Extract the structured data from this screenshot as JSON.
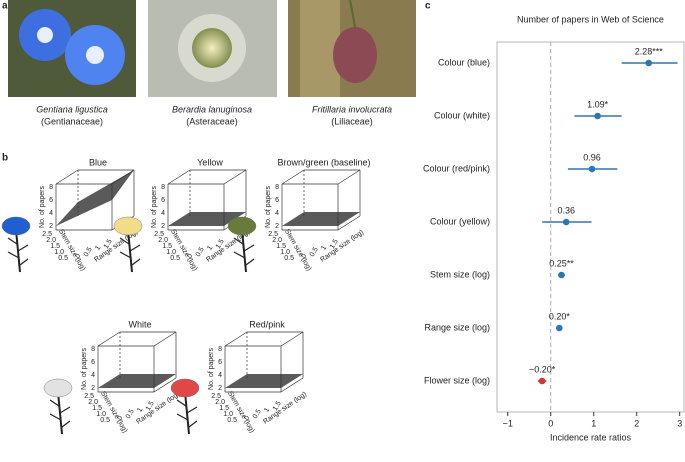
{
  "panel_a": {
    "label": "a",
    "photos": [
      {
        "species": "Gentiana ligustica",
        "family": "(Gentianaceae)"
      },
      {
        "species": "Berardia lanuginosa",
        "family": "(Asteraceae)"
      },
      {
        "species": "Fritillaria involucrata",
        "family": "(Liliaceae)"
      }
    ]
  },
  "panel_b": {
    "label": "b",
    "plots": [
      {
        "title": "Blue"
      },
      {
        "title": "Yellow"
      },
      {
        "title": "Brown/green (baseline)"
      },
      {
        "title": "White"
      },
      {
        "title": "Red/pink"
      }
    ],
    "z_label": "No. of papers",
    "x_label": "Range size (log)",
    "y_label": "Stem size (log)",
    "z_ticks": [
      "2",
      "4",
      "6",
      "8"
    ],
    "x_ticks": [
      "0",
      "0.5",
      "1",
      "1.5"
    ],
    "y_ticks": [
      "2.5",
      "2.0",
      "1.5",
      "1.0",
      "0.5"
    ]
  },
  "chart_data": {
    "type": "forest",
    "label": "c",
    "title": "Number of papers in Web of Science",
    "x_label": "Incidence rate ratios",
    "categories": [
      "Colour (blue)",
      "Colour (white)",
      "Colour (red/pink)",
      "Colour (yellow)",
      "Stem size (log)",
      "Range size (log)",
      "Flower size (log)"
    ],
    "values": [
      2.28,
      1.09,
      0.96,
      0.36,
      0.25,
      0.2,
      -0.2
    ],
    "value_labels": [
      "2.28***",
      "1.09*",
      "0.96",
      "0.36",
      "0.25**",
      "0.20*",
      "−0.20*"
    ],
    "ci_low": [
      1.65,
      0.55,
      0.4,
      -0.2,
      0.17,
      0.13,
      -0.3
    ],
    "ci_high": [
      2.95,
      1.65,
      1.55,
      0.95,
      0.33,
      0.27,
      -0.1
    ],
    "colors": [
      "#2e75b6",
      "#2e75b6",
      "#2e75b6",
      "#2e75b6",
      "#2e75b6",
      "#2e75b6",
      "#e0302a"
    ],
    "xlim": [
      -1.25,
      3.1
    ],
    "xticks": [
      {
        "value": -1,
        "label": "−1"
      },
      0,
      1,
      2,
      3
    ],
    "refline": 0
  }
}
